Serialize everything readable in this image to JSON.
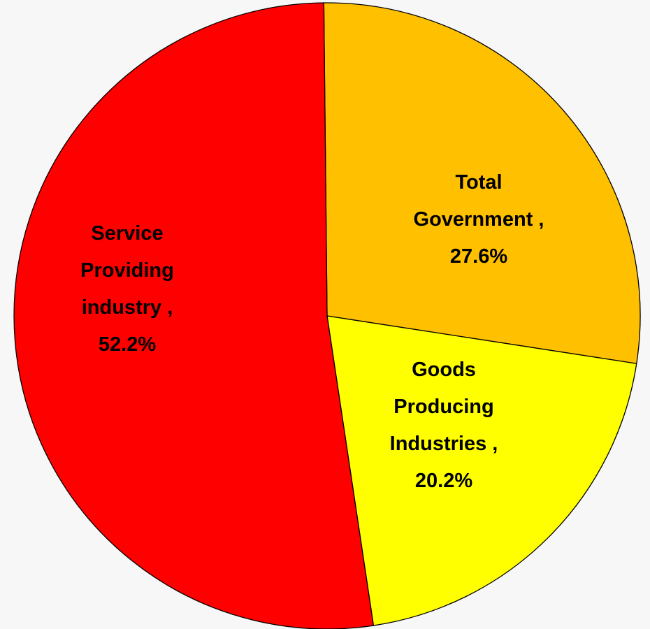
{
  "chart_data": {
    "type": "pie",
    "title": "",
    "legend": "none",
    "slices": [
      {
        "name": "Total Government",
        "value": 27.6,
        "display": "27.6%",
        "color": "#FFC000",
        "label_lines": [
          "Total",
          "Government ,",
          "27.6%"
        ]
      },
      {
        "name": "Goods Producing Industries",
        "value": 20.2,
        "display": "20.2%",
        "color": "#FFFF00",
        "label_lines": [
          "Goods",
          "Producing",
          "Industries ,",
          "20.2%"
        ]
      },
      {
        "name": "Service Providing industry",
        "value": 52.2,
        "display": "52.2%",
        "color": "#FF0000",
        "label_lines": [
          "Service",
          "Providing",
          "industry ,",
          "52.2%"
        ]
      }
    ]
  }
}
